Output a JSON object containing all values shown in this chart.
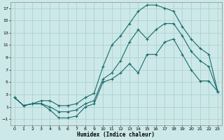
{
  "xlabel": "Humidex (Indice chaleur)",
  "background_color": "#cce8e8",
  "grid_color": "#aacccc",
  "line_color": "#1a6b6b",
  "xlim": [
    -0.5,
    23.5
  ],
  "ylim": [
    -2.0,
    18.0
  ],
  "xticks": [
    0,
    1,
    2,
    3,
    4,
    5,
    6,
    7,
    8,
    9,
    10,
    11,
    12,
    13,
    14,
    15,
    16,
    17,
    18,
    19,
    20,
    21,
    22,
    23
  ],
  "yticks": [
    -1,
    1,
    3,
    5,
    7,
    9,
    11,
    13,
    15,
    17
  ],
  "line_top_x": [
    0,
    1,
    2,
    3,
    4,
    5,
    6,
    7,
    8,
    9,
    10,
    11,
    12,
    13,
    14,
    15,
    16,
    17,
    18,
    19,
    20,
    21,
    22,
    23
  ],
  "line_top_y": [
    2.5,
    1.2,
    1.5,
    2.0,
    2.0,
    1.2,
    1.2,
    1.5,
    2.5,
    3.2,
    7.5,
    11.0,
    12.5,
    14.5,
    16.5,
    17.5,
    17.5,
    17.0,
    16.5,
    14.0,
    12.0,
    10.5,
    9.5,
    3.5
  ],
  "line_mid_x": [
    0,
    1,
    2,
    3,
    4,
    5,
    6,
    7,
    8,
    9,
    10,
    11,
    12,
    13,
    14,
    15,
    16,
    17,
    18,
    19,
    20,
    21,
    22,
    23
  ],
  "line_mid_y": [
    2.5,
    1.2,
    1.5,
    1.5,
    1.0,
    0.2,
    0.2,
    0.5,
    1.5,
    2.0,
    5.5,
    6.5,
    8.5,
    11.5,
    13.5,
    12.0,
    13.5,
    14.5,
    14.5,
    12.5,
    10.0,
    8.5,
    7.5,
    3.5
  ],
  "line_bot_x": [
    0,
    1,
    2,
    3,
    4,
    5,
    6,
    7,
    8,
    9,
    10,
    11,
    12,
    13,
    14,
    15,
    16,
    17,
    18,
    19,
    20,
    21,
    22,
    23
  ],
  "line_bot_y": [
    2.5,
    1.2,
    1.5,
    1.5,
    0.5,
    -0.8,
    -0.8,
    -0.5,
    1.0,
    1.5,
    5.0,
    5.5,
    6.5,
    8.0,
    6.5,
    9.5,
    9.5,
    11.5,
    12.0,
    9.5,
    7.0,
    5.2,
    5.2,
    3.5
  ]
}
